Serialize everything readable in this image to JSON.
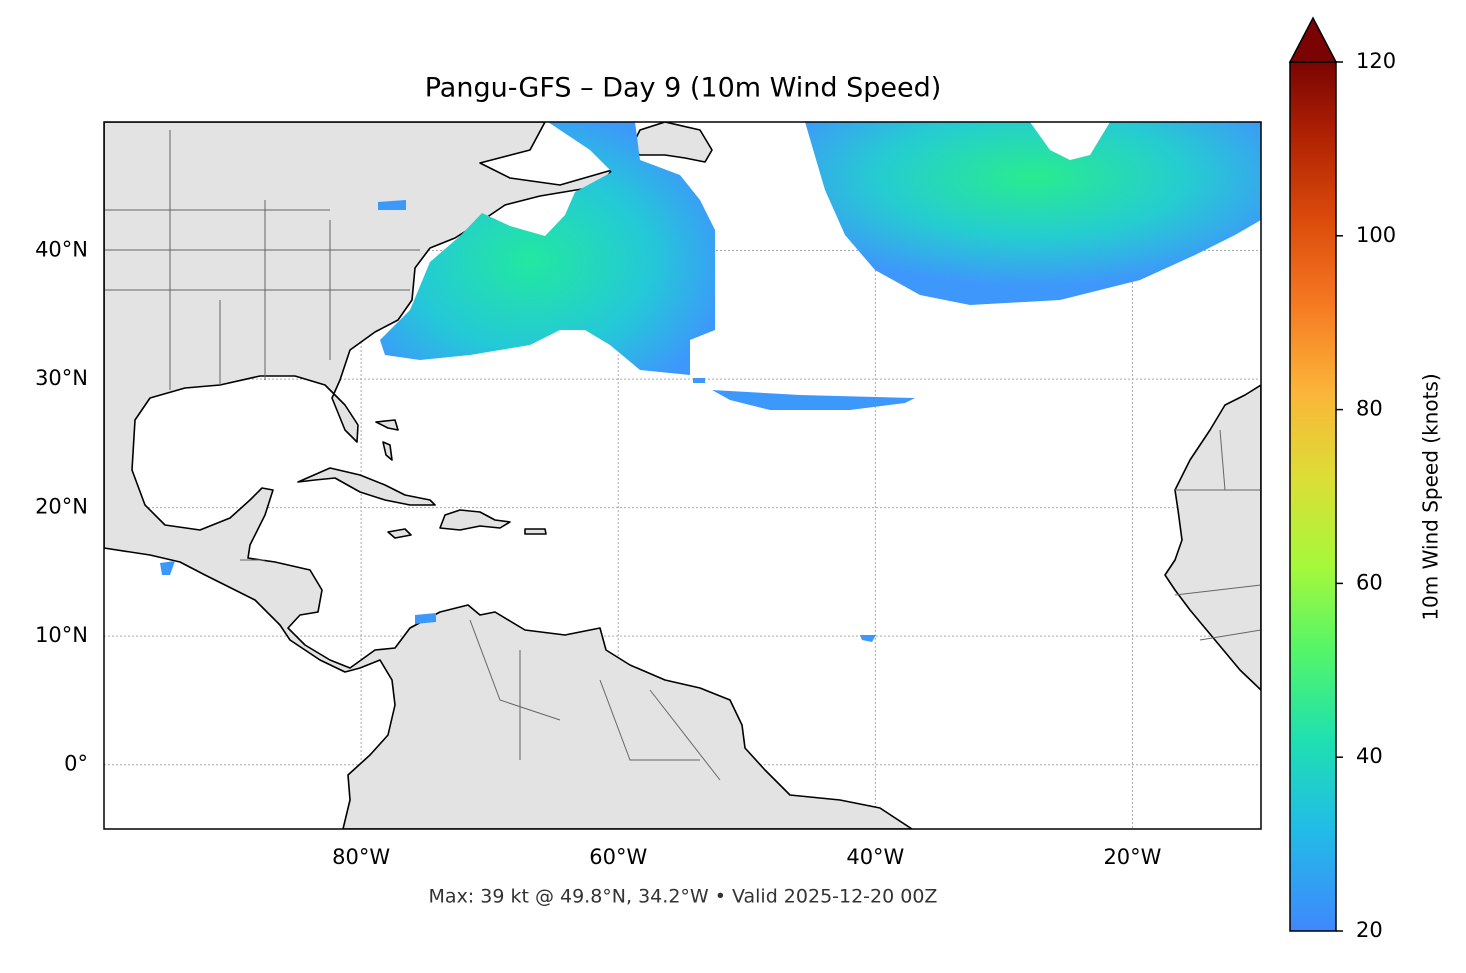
{
  "chart_data": {
    "type": "map",
    "title": "Pangu-GFS – Day 9 (10m Wind Speed)",
    "footer": "Max: 39 kt @ 49.8°N, 34.2°W • Valid 2025-12-20 00Z",
    "xlim": [
      -100,
      -10
    ],
    "ylim": [
      -5,
      50
    ],
    "xticks": [
      {
        "value": -80,
        "label": "80°W"
      },
      {
        "value": -60,
        "label": "60°W"
      },
      {
        "value": -40,
        "label": "40°W"
      },
      {
        "value": -20,
        "label": "20°W"
      }
    ],
    "yticks": [
      {
        "value": 0,
        "label": "0°"
      },
      {
        "value": 10,
        "label": "10°N"
      },
      {
        "value": 20,
        "label": "20°N"
      },
      {
        "value": 30,
        "label": "30°N"
      },
      {
        "value": 40,
        "label": "40°N"
      }
    ],
    "grid": true,
    "colorbar": {
      "label": "10m Wind Speed (knots)",
      "lim": [
        20,
        120
      ],
      "ticks": [
        20,
        40,
        60,
        80,
        100,
        120
      ],
      "extend": "max"
    }
  }
}
